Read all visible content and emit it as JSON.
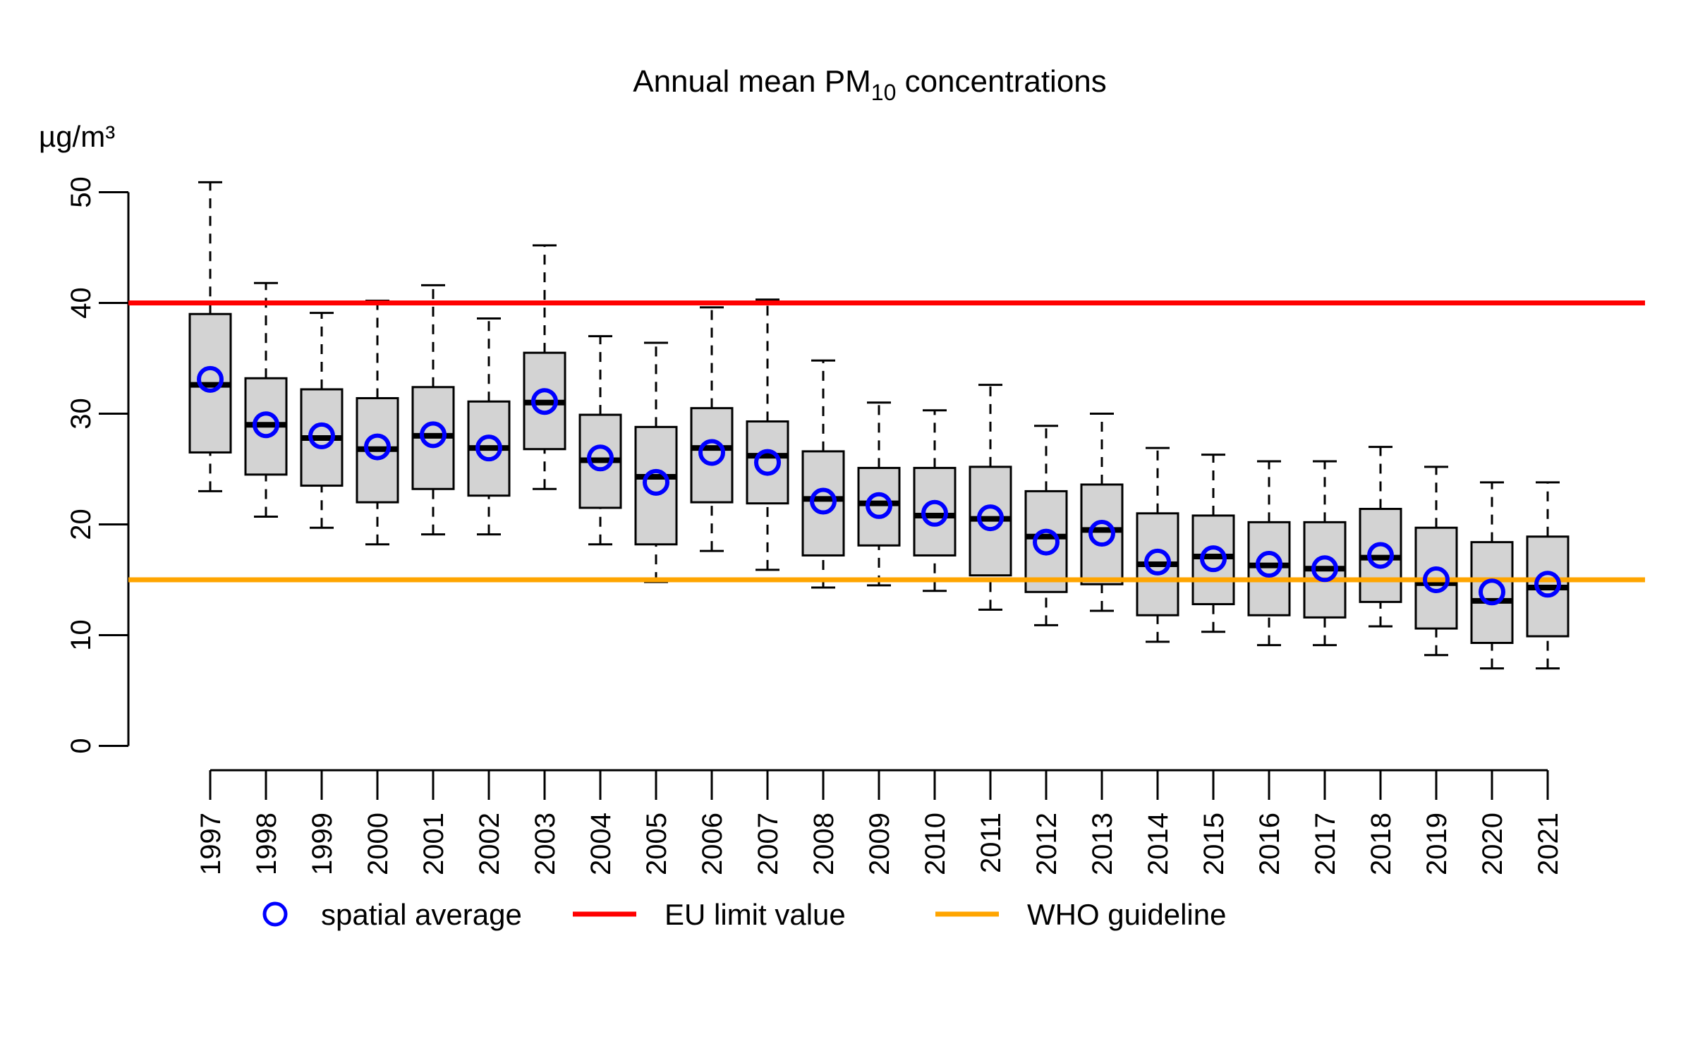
{
  "page": {
    "background": "#ffffff"
  },
  "header": {
    "title_prefix": "Annual mean PM",
    "title_sub": "10",
    "title_suffix": " concentrations"
  },
  "axes": {
    "y_unit_label": "µg/m³"
  },
  "colors": {
    "mean_marker": "#0000ff",
    "eu_limit_line": "#ff0000",
    "who_guideline_line": "#ffa500",
    "box_fill": "#d3d3d3",
    "box_border": "#000000",
    "axis": "#000000"
  },
  "chart_data": {
    "type": "boxplot",
    "title": "Annual mean PM10 concentrations",
    "xlabel": "",
    "ylabel": "µg/m³",
    "ylim": [
      0,
      52
    ],
    "yticks": [
      0,
      10,
      20,
      30,
      40,
      50
    ],
    "grid": false,
    "x_tick_label_rotation_deg": 90,
    "categories": [
      "1997",
      "1998",
      "1999",
      "2000",
      "2001",
      "2002",
      "2003",
      "2004",
      "2005",
      "2006",
      "2007",
      "2008",
      "2009",
      "2010",
      "2011",
      "2012",
      "2013",
      "2014",
      "2015",
      "2016",
      "2017",
      "2018",
      "2019",
      "2020",
      "2021"
    ],
    "series": [
      {
        "key": "min",
        "name": "lower whisker",
        "values": [
          23.0,
          20.7,
          19.7,
          18.2,
          19.1,
          19.1,
          23.2,
          18.2,
          14.8,
          17.6,
          15.9,
          14.3,
          14.5,
          14.0,
          12.3,
          10.9,
          12.2,
          9.4,
          10.3,
          9.1,
          9.1,
          10.8,
          8.2,
          7.0,
          7.0
        ]
      },
      {
        "key": "q1",
        "name": "first quartile",
        "values": [
          26.5,
          24.5,
          23.5,
          22.0,
          23.2,
          22.6,
          26.8,
          21.5,
          18.2,
          22.0,
          21.9,
          17.2,
          18.1,
          17.2,
          15.4,
          13.9,
          14.6,
          11.8,
          12.8,
          11.8,
          11.6,
          13.0,
          10.6,
          9.3,
          9.9
        ]
      },
      {
        "key": "median",
        "name": "median",
        "values": [
          32.6,
          29.0,
          27.8,
          26.8,
          28.0,
          26.9,
          31.0,
          25.8,
          24.3,
          26.9,
          26.2,
          22.3,
          21.9,
          20.8,
          20.5,
          18.9,
          19.5,
          16.4,
          17.1,
          16.3,
          16.0,
          17.0,
          14.7,
          13.1,
          14.3
        ]
      },
      {
        "key": "q3",
        "name": "third quartile",
        "values": [
          39.0,
          33.2,
          32.2,
          31.4,
          32.4,
          31.1,
          35.5,
          29.9,
          28.8,
          30.5,
          29.3,
          26.6,
          25.1,
          25.1,
          25.2,
          23.0,
          23.6,
          21.0,
          20.8,
          20.2,
          20.2,
          21.4,
          19.7,
          18.4,
          18.9
        ]
      },
      {
        "key": "max",
        "name": "upper whisker",
        "values": [
          50.9,
          41.8,
          39.1,
          40.2,
          41.6,
          38.6,
          45.2,
          37.0,
          36.4,
          39.6,
          40.3,
          34.8,
          31.0,
          30.3,
          32.6,
          28.9,
          30.0,
          26.9,
          26.3,
          25.7,
          25.7,
          27.0,
          25.2,
          23.8,
          23.8
        ]
      },
      {
        "key": "mean",
        "name": "spatial average",
        "values": [
          33.1,
          29.0,
          28.0,
          27.0,
          28.1,
          26.9,
          31.1,
          26.0,
          23.8,
          26.5,
          25.6,
          22.1,
          21.7,
          21.0,
          20.6,
          18.4,
          19.2,
          16.6,
          16.9,
          16.4,
          16.0,
          17.2,
          15.0,
          13.9,
          14.6
        ]
      }
    ],
    "reference_lines": [
      {
        "key": "eu",
        "label": "EU limit value",
        "value": 40,
        "color": "#ff0000"
      },
      {
        "key": "who",
        "label": "WHO guideline",
        "value": 15,
        "color": "#ffa500"
      }
    ],
    "legend": {
      "position": "bottom",
      "entries": [
        {
          "label": "spatial average",
          "marker": "open-circle",
          "color": "#0000ff"
        },
        {
          "label": "EU limit value",
          "marker": "line",
          "color": "#ff0000"
        },
        {
          "label": "WHO guideline",
          "marker": "line",
          "color": "#ffa500"
        }
      ]
    }
  }
}
